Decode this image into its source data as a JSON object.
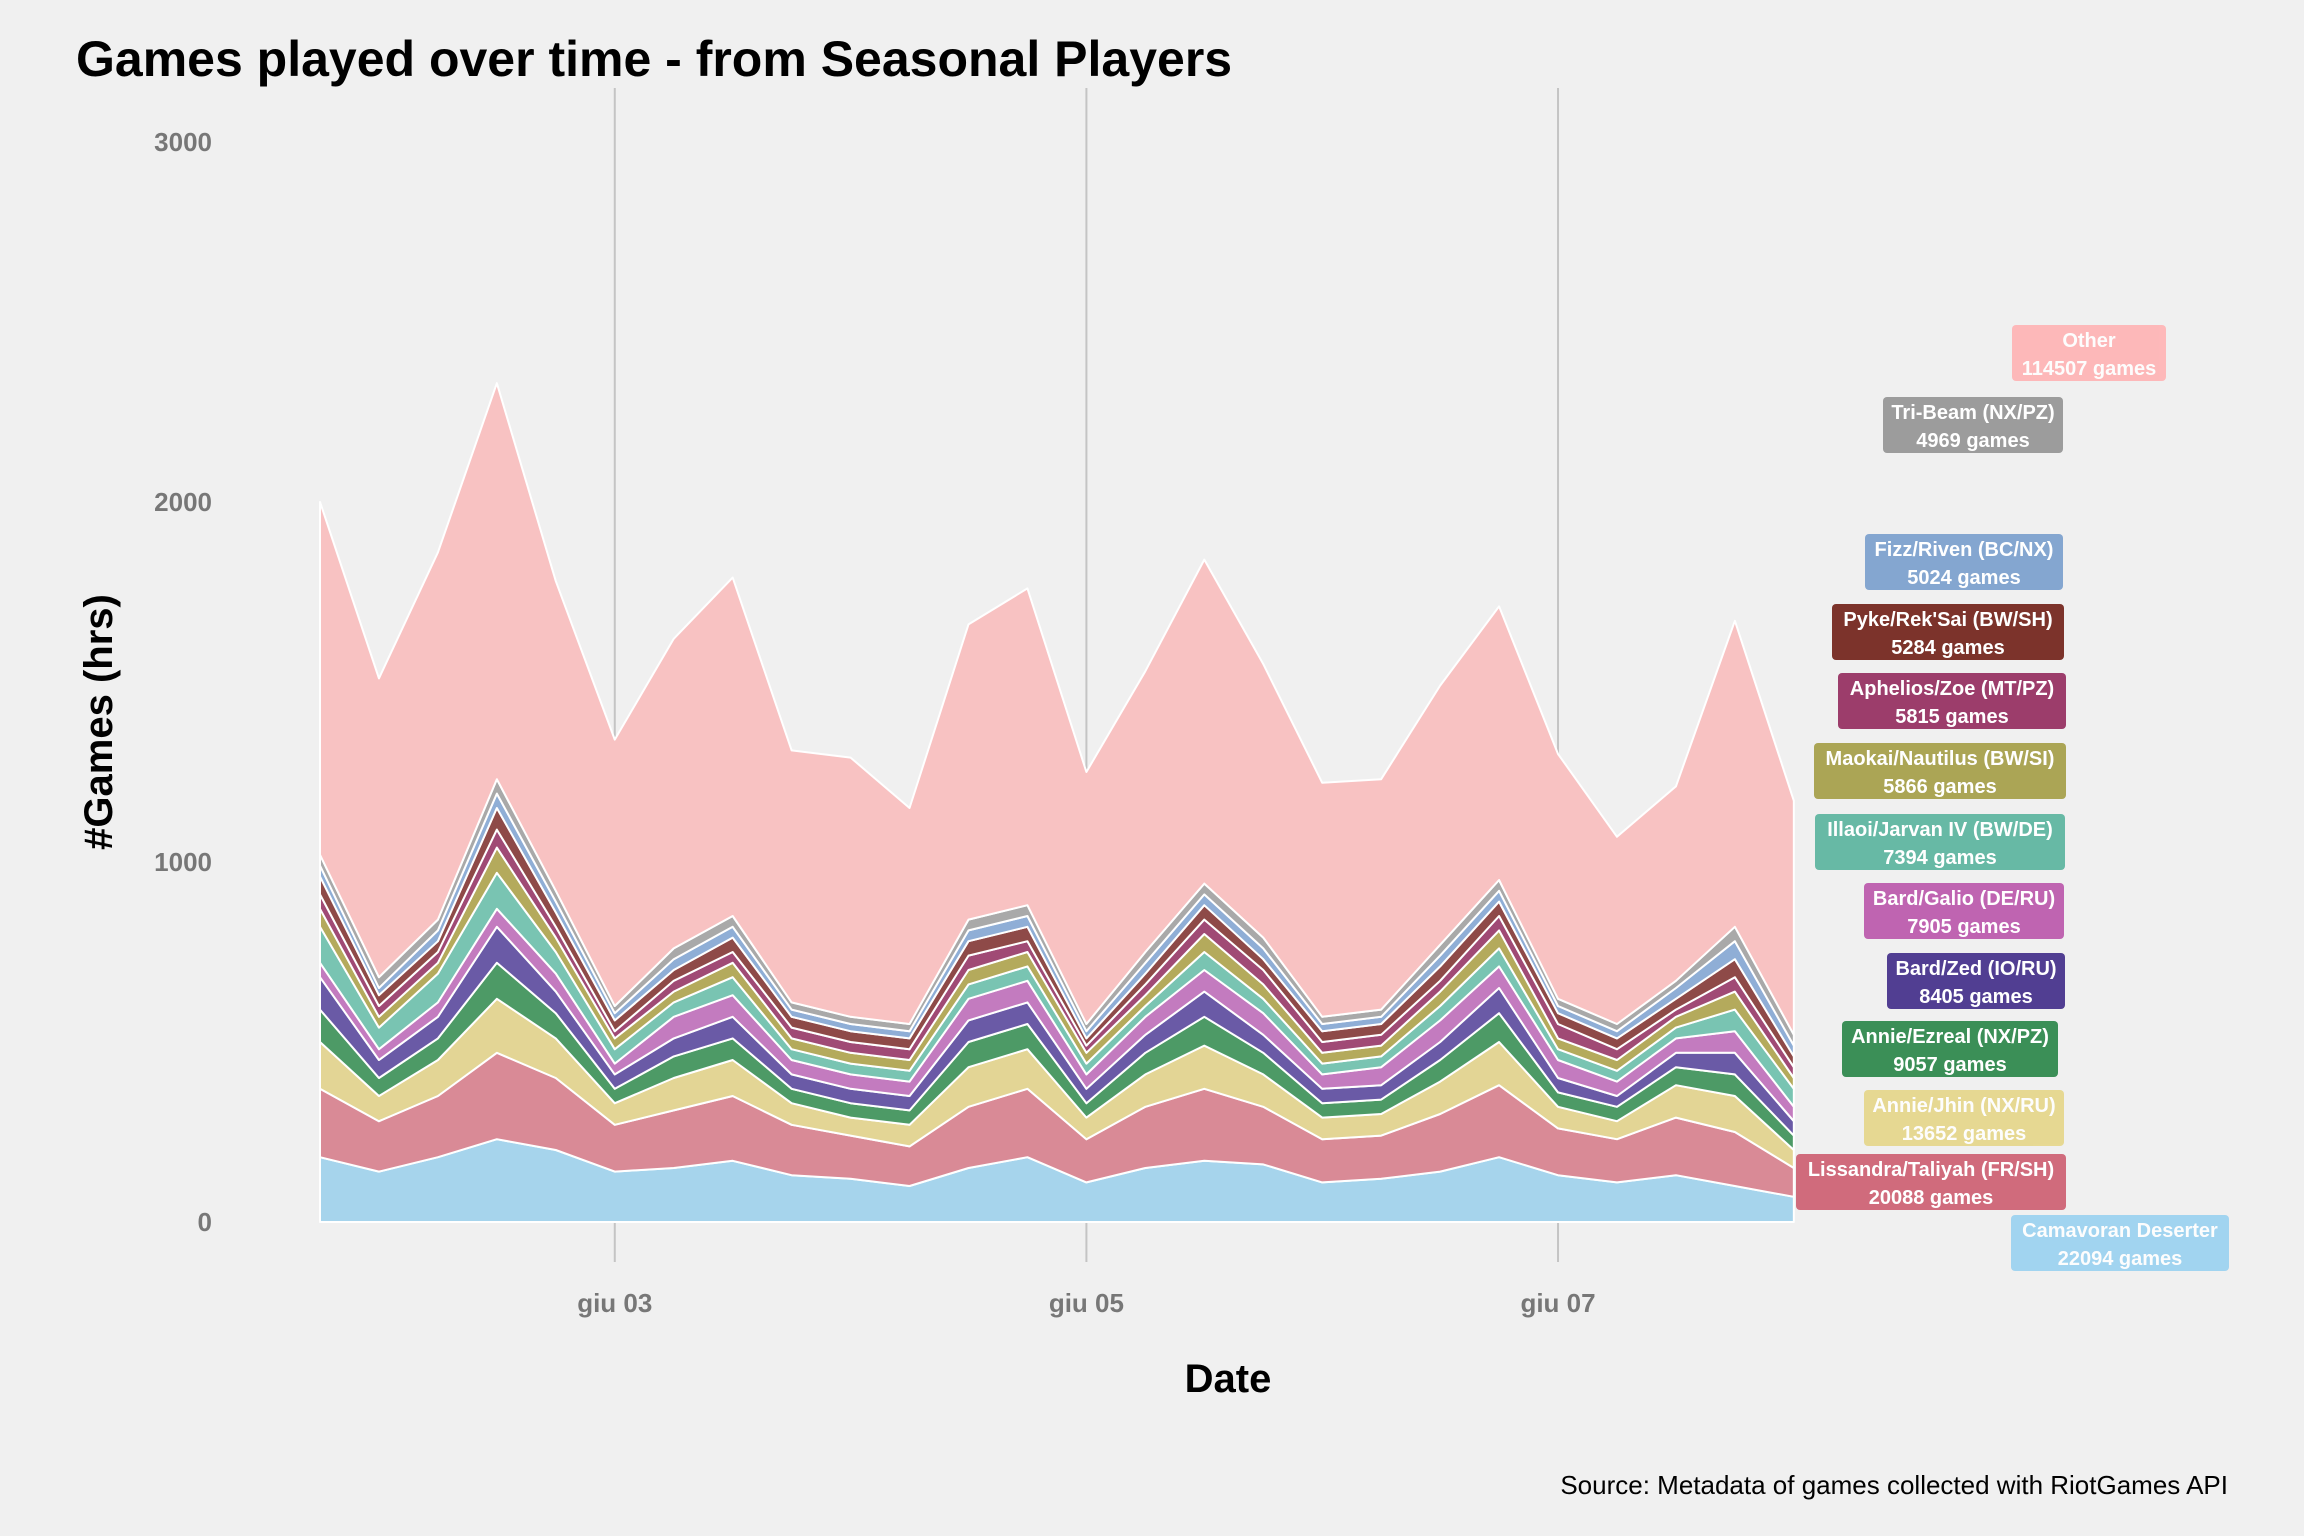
{
  "chart_data": {
    "type": "area",
    "stacked": true,
    "title": "Games played over time - from Seasonal Players",
    "xlabel": "Date",
    "ylabel": "#Games (hrs)",
    "caption": "Source: Metadata of games collected with RiotGames API",
    "ylim": [
      0,
      3000
    ],
    "yticks": [
      0,
      1000,
      2000,
      3000
    ],
    "xlim": [
      "2020-06-01 18:00",
      "2020-06-08 22:00"
    ],
    "xticks": [
      {
        "value": "2020-06-03 00:00",
        "label": "giu 03"
      },
      {
        "value": "2020-06-05 00:00",
        "label": "giu 05"
      },
      {
        "value": "2020-06-07 00:00",
        "label": "giu 07"
      }
    ],
    "grid_vertical": true,
    "legend": "labels at right end of series",
    "x": [
      "2020-06-01 18:00",
      "2020-06-02 00:00",
      "2020-06-02 06:00",
      "2020-06-02 12:00",
      "2020-06-02 18:00",
      "2020-06-03 00:00",
      "2020-06-03 06:00",
      "2020-06-03 12:00",
      "2020-06-03 18:00",
      "2020-06-04 00:00",
      "2020-06-04 06:00",
      "2020-06-04 12:00",
      "2020-06-04 18:00",
      "2020-06-05 00:00",
      "2020-06-05 06:00",
      "2020-06-05 12:00",
      "2020-06-05 18:00",
      "2020-06-06 00:00",
      "2020-06-06 06:00",
      "2020-06-06 12:00",
      "2020-06-06 18:00",
      "2020-06-07 00:00",
      "2020-06-07 06:00",
      "2020-06-07 12:00",
      "2020-06-07 18:00",
      "2020-06-08 00:00"
    ],
    "series": [
      {
        "name": "Camavoran Deserter",
        "total_label": "22094 games",
        "color": "#a6d4ec",
        "values": [
          180,
          140,
          180,
          230,
          200,
          140,
          150,
          170,
          130,
          120,
          100,
          150,
          180,
          110,
          150,
          170,
          160,
          110,
          120,
          140,
          180,
          130,
          110,
          130,
          100,
          70
        ]
      },
      {
        "name": "Lissandra/Taliyah (FR/SH)",
        "total_label": "20088 games",
        "color": "#d98a96",
        "values": [
          190,
          140,
          170,
          240,
          200,
          130,
          160,
          180,
          140,
          120,
          110,
          170,
          190,
          120,
          170,
          200,
          160,
          120,
          120,
          160,
          200,
          130,
          120,
          160,
          150,
          80
        ]
      },
      {
        "name": "Annie/Jhin (NX/RU)",
        "total_label": "13652 games",
        "color": "#e3d595",
        "values": [
          130,
          70,
          100,
          150,
          110,
          60,
          90,
          100,
          60,
          50,
          60,
          110,
          110,
          60,
          90,
          120,
          90,
          60,
          60,
          90,
          120,
          60,
          50,
          90,
          100,
          50
        ]
      },
      {
        "name": "Annie/Ezreal (NX/PZ)",
        "total_label": "9057 games",
        "color": "#4d9a66",
        "values": [
          90,
          50,
          60,
          100,
          70,
          40,
          60,
          60,
          40,
          40,
          40,
          70,
          70,
          40,
          60,
          80,
          60,
          40,
          40,
          60,
          80,
          40,
          40,
          50,
          60,
          40
        ]
      },
      {
        "name": "Bard/Zed (IO/RU)",
        "total_label": "8405 games",
        "color": "#6a5aa6",
        "values": [
          90,
          50,
          60,
          100,
          60,
          40,
          50,
          60,
          40,
          40,
          40,
          60,
          60,
          40,
          50,
          70,
          50,
          40,
          40,
          50,
          70,
          40,
          30,
          40,
          60,
          40
        ]
      },
      {
        "name": "Bard/Galio (DE/RU)",
        "total_label": "7905 games",
        "color": "#c37bbf",
        "values": [
          40,
          30,
          40,
          50,
          50,
          30,
          60,
          60,
          40,
          40,
          40,
          60,
          60,
          40,
          50,
          60,
          60,
          40,
          50,
          60,
          60,
          50,
          40,
          40,
          60,
          40
        ]
      },
      {
        "name": "Illaoi/Jarvan IV (BW/DE)",
        "total_label": "7394 games",
        "color": "#79c4b2",
        "values": [
          100,
          60,
          80,
          100,
          60,
          40,
          40,
          50,
          30,
          30,
          30,
          40,
          40,
          30,
          30,
          50,
          40,
          30,
          30,
          40,
          50,
          30,
          30,
          30,
          60,
          50
        ]
      },
      {
        "name": "Maokai/Nautilus (BW/SI)",
        "total_label": "5866 games",
        "color": "#b4aa5c",
        "values": [
          50,
          30,
          30,
          70,
          40,
          30,
          30,
          40,
          30,
          30,
          30,
          40,
          40,
          30,
          30,
          50,
          40,
          30,
          30,
          40,
          50,
          30,
          30,
          30,
          50,
          30
        ]
      },
      {
        "name": "Aphelios/Zoe (MT/PZ)",
        "total_label": "5815 games",
        "color": "#a04a75",
        "values": [
          40,
          30,
          30,
          50,
          30,
          20,
          30,
          30,
          30,
          30,
          30,
          40,
          30,
          20,
          30,
          40,
          40,
          30,
          30,
          30,
          40,
          40,
          30,
          20,
          40,
          30
        ]
      },
      {
        "name": "Pyke/Rek'Sai (BW/SH)",
        "total_label": "5284 games",
        "color": "#8e4a48",
        "values": [
          50,
          30,
          30,
          60,
          40,
          30,
          30,
          40,
          30,
          30,
          30,
          40,
          40,
          20,
          30,
          40,
          30,
          30,
          30,
          40,
          40,
          30,
          30,
          30,
          50,
          30
        ]
      },
      {
        "name": "Fizz/Riven (BC/NX)",
        "total_label": "5024 games",
        "color": "#8faed6",
        "values": [
          30,
          20,
          30,
          40,
          30,
          20,
          30,
          30,
          20,
          20,
          20,
          30,
          30,
          20,
          30,
          30,
          30,
          20,
          20,
          30,
          30,
          20,
          20,
          30,
          50,
          30
        ]
      },
      {
        "name": "Tri-Beam (NX/PZ)",
        "total_label": "4969 games",
        "color": "#a9a9a9",
        "values": [
          30,
          30,
          30,
          40,
          30,
          20,
          30,
          30,
          20,
          20,
          20,
          30,
          30,
          20,
          30,
          30,
          30,
          20,
          20,
          30,
          30,
          20,
          20,
          20,
          40,
          30
        ]
      },
      {
        "name": "Other",
        "total_label": "114507 games",
        "color": "#f8c2c2",
        "values": [
          980,
          830,
          1020,
          1100,
          860,
          740,
          860,
          940,
          700,
          720,
          600,
          820,
          880,
          700,
          780,
          900,
          760,
          650,
          640,
          720,
          760,
          680,
          520,
          540,
          850,
          650
        ]
      }
    ],
    "label_boxes": [
      {
        "name": "Other",
        "total_label": "114507 games",
        "color": "#ffb2b4"
      },
      {
        "name": "Tri-Beam (NX/PZ)",
        "total_label": "4969 games",
        "color": "#9c9c9c"
      },
      {
        "name": "Fizz/Riven (BC/NX)",
        "total_label": "5024 games",
        "color": "#84a6d0"
      },
      {
        "name": "Pyke/Rek'Sai (BW/SH)",
        "total_label": "5284 games",
        "color": "#7c332b"
      },
      {
        "name": "Aphelios/Zoe (MT/PZ)",
        "total_label": "5815 games",
        "color": "#9c3d6b"
      },
      {
        "name": "Maokai/Nautilus (BW/SI)",
        "total_label": "5866 games",
        "color": "#aba555"
      },
      {
        "name": "Illaoi/Jarvan IV (BW/DE)",
        "total_label": "7394 games",
        "color": "#67b9a5"
      },
      {
        "name": "Bard/Galio (DE/RU)",
        "total_label": "7905 games",
        "color": "#bf64b1"
      },
      {
        "name": "Bard/Zed (IO/RU)",
        "total_label": "8405 games",
        "color": "#513e92"
      },
      {
        "name": "Annie/Ezreal (NX/PZ)",
        "total_label": "9057 games",
        "color": "#3b8f57"
      },
      {
        "name": "Annie/Jhin (NX/RU)",
        "total_label": "13652 games",
        "color": "#e5d688"
      },
      {
        "name": "Lissandra/Taliyah (FR/SH)",
        "total_label": "20088 games",
        "color": "#d06b7c"
      },
      {
        "name": "Camavoran Deserter",
        "total_label": "22094 games",
        "color": "#99d1f1"
      }
    ]
  }
}
